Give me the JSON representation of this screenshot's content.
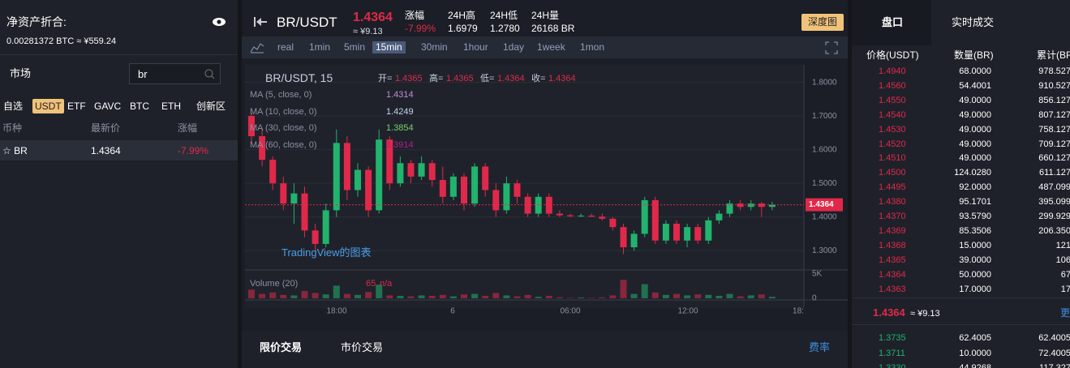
{
  "left": {
    "asset_title": "净资产折合:",
    "asset_value": "0.00281372 BTC ≈ ¥559.24",
    "market_label": "市场",
    "search": "br",
    "tabs": [
      "自选",
      "USDT",
      "ETF",
      "GAVC",
      "BTC",
      "ETH",
      "创新区"
    ],
    "active_tab": 1,
    "columns": [
      "币种",
      "最新价",
      "涨幅"
    ],
    "rows": [
      [
        "☆ BR",
        "1.4364",
        "-7.99%"
      ]
    ]
  },
  "header": {
    "pair": "BR/USDT",
    "price": "1.4364",
    "price_cny": "≈ ¥9.13",
    "stats": [
      {
        "label": "涨幅",
        "value": "-7.99%"
      },
      {
        "label": "24H高",
        "value": "1.6979"
      },
      {
        "label": "24H低",
        "value": "1.2780"
      },
      {
        "label": "24H量",
        "value": "26168 BR"
      }
    ],
    "depth_button": "深度图"
  },
  "intervals": [
    "real",
    "1min",
    "5min",
    "15min",
    "30min",
    "1hour",
    "1day",
    "1week",
    "1mon"
  ],
  "active_interval": 3,
  "chart_data": {
    "type": "candlestick",
    "legend_title": "BR/USDT, 15",
    "ohlc_legend": [
      {
        "label": "开=",
        "value": "1.4365"
      },
      {
        "label": "高=",
        "value": "1.4365"
      },
      {
        "label": "低=",
        "value": "1.4364"
      },
      {
        "label": "收=",
        "value": "1.4364"
      }
    ],
    "ma": [
      {
        "label": "MA (5, close, 0)",
        "value": "1.4314",
        "color": "#c48ad6"
      },
      {
        "label": "MA (10, close, 0)",
        "value": "1.4249",
        "color": "#c6d4f0"
      },
      {
        "label": "MA (30, close, 0)",
        "value": "1.3854",
        "color": "#7ccf6a"
      },
      {
        "label": "MA (60, close, 0)",
        "value": "1.3914",
        "color": "#b0208c"
      }
    ],
    "watermark": "TradingView的图表",
    "volume_label": "Volume (20)",
    "volume_value": "65",
    "volume_na": "n/a",
    "last_price": 1.4364,
    "last_price_label": "1.4364",
    "up_color": "#22b36e",
    "down_color": "#e0294a",
    "ylim": [
      1.25,
      1.84
    ],
    "yticks": [
      {
        "value": 1.3,
        "label": "1.3000"
      },
      {
        "value": 1.4,
        "label": "1.4000"
      },
      {
        "value": 1.5,
        "label": "1.5000"
      },
      {
        "value": 1.6,
        "label": "1.6000"
      },
      {
        "value": 1.7,
        "label": "1.7000"
      },
      {
        "value": 1.8,
        "label": "1.8000"
      }
    ],
    "vlim": [
      0,
      5000
    ],
    "vticks": [
      {
        "value": 5000,
        "label": "5K"
      },
      0
    ],
    "xticks": [
      "18:00",
      "6",
      "06:00",
      "12:00",
      "18:"
    ],
    "ohlc": [
      [
        1.7,
        1.71,
        1.62,
        1.64
      ],
      [
        1.64,
        1.66,
        1.55,
        1.57
      ],
      [
        1.57,
        1.58,
        1.48,
        1.5
      ],
      [
        1.5,
        1.52,
        1.42,
        1.44
      ],
      [
        1.44,
        1.5,
        1.38,
        1.47
      ],
      [
        1.47,
        1.49,
        1.34,
        1.36
      ],
      [
        1.36,
        1.38,
        1.3,
        1.32
      ],
      [
        1.32,
        1.44,
        1.31,
        1.42
      ],
      [
        1.42,
        1.66,
        1.4,
        1.62
      ],
      [
        1.62,
        1.64,
        1.45,
        1.48
      ],
      [
        1.48,
        1.56,
        1.46,
        1.54
      ],
      [
        1.54,
        1.55,
        1.4,
        1.42
      ],
      [
        1.42,
        1.66,
        1.41,
        1.63
      ],
      [
        1.63,
        1.64,
        1.48,
        1.5
      ],
      [
        1.5,
        1.58,
        1.49,
        1.56
      ],
      [
        1.56,
        1.57,
        1.5,
        1.52
      ],
      [
        1.52,
        1.58,
        1.51,
        1.56
      ],
      [
        1.56,
        1.57,
        1.49,
        1.51
      ],
      [
        1.51,
        1.55,
        1.44,
        1.46
      ],
      [
        1.46,
        1.53,
        1.45,
        1.52
      ],
      [
        1.52,
        1.53,
        1.42,
        1.44
      ],
      [
        1.44,
        1.56,
        1.43,
        1.55
      ],
      [
        1.55,
        1.56,
        1.46,
        1.48
      ],
      [
        1.48,
        1.5,
        1.4,
        1.42
      ],
      [
        1.42,
        1.52,
        1.41,
        1.5
      ],
      [
        1.5,
        1.51,
        1.44,
        1.46
      ],
      [
        1.46,
        1.47,
        1.4,
        1.41
      ],
      [
        1.41,
        1.47,
        1.4,
        1.46
      ],
      [
        1.46,
        1.47,
        1.4,
        1.41
      ],
      [
        1.41,
        1.42,
        1.4,
        1.405
      ],
      [
        1.405,
        1.41,
        1.4,
        1.402
      ],
      [
        1.402,
        1.41,
        1.4,
        1.404
      ],
      [
        1.404,
        1.41,
        1.4,
        1.401
      ],
      [
        1.401,
        1.41,
        1.39,
        1.395
      ],
      [
        1.395,
        1.4,
        1.36,
        1.37
      ],
      [
        1.37,
        1.38,
        1.29,
        1.31
      ],
      [
        1.31,
        1.36,
        1.3,
        1.35
      ],
      [
        1.35,
        1.46,
        1.34,
        1.45
      ],
      [
        1.45,
        1.46,
        1.32,
        1.33
      ],
      [
        1.33,
        1.39,
        1.32,
        1.38
      ],
      [
        1.38,
        1.39,
        1.32,
        1.33
      ],
      [
        1.33,
        1.38,
        1.31,
        1.37
      ],
      [
        1.37,
        1.38,
        1.32,
        1.33
      ],
      [
        1.33,
        1.4,
        1.32,
        1.39
      ],
      [
        1.39,
        1.42,
        1.38,
        1.41
      ],
      [
        1.41,
        1.45,
        1.4,
        1.44
      ],
      [
        1.44,
        1.45,
        1.42,
        1.43
      ],
      [
        1.43,
        1.45,
        1.42,
        1.44
      ],
      [
        1.44,
        1.445,
        1.4,
        1.43
      ],
      [
        1.43,
        1.445,
        1.42,
        1.4364
      ]
    ],
    "volumes": [
      1800,
      900,
      1200,
      700,
      600,
      1500,
      1100,
      800,
      2600,
      900,
      700,
      1300,
      2800,
      600,
      500,
      400,
      600,
      500,
      700,
      400,
      800,
      900,
      500,
      1100,
      600,
      400,
      700,
      300,
      500,
      200,
      100,
      150,
      100,
      200,
      600,
      3800,
      900,
      2900,
      1200,
      700,
      900,
      600,
      800,
      700,
      500,
      900,
      400,
      600,
      800,
      300
    ]
  },
  "orderbook": {
    "tabs": [
      "盘口",
      "实时成交"
    ],
    "columns": [
      "价格(USDT)",
      "数量(BR)",
      "累计(BR)"
    ],
    "asks": [
      [
        "1.4940",
        "68.0000",
        "978.527"
      ],
      [
        "1.4560",
        "54.4001",
        "910.527"
      ],
      [
        "1.4550",
        "49.0000",
        "856.127"
      ],
      [
        "1.4540",
        "49.0000",
        "807.127"
      ],
      [
        "1.4530",
        "49.0000",
        "758.127"
      ],
      [
        "1.4520",
        "49.0000",
        "709.127"
      ],
      [
        "1.4510",
        "49.0000",
        "660.127"
      ],
      [
        "1.4500",
        "124.0280",
        "611.127"
      ],
      [
        "1.4495",
        "92.0000",
        "487.099"
      ],
      [
        "1.4380",
        "95.1701",
        "395.099"
      ],
      [
        "1.4370",
        "93.5790",
        "299.929"
      ],
      [
        "1.4369",
        "85.3506",
        "206.350"
      ],
      [
        "1.4368",
        "15.0000",
        "121"
      ],
      [
        "1.4365",
        "39.0000",
        "106"
      ],
      [
        "1.4364",
        "50.0000",
        "67"
      ],
      [
        "1.4363",
        "17.0000",
        "17"
      ]
    ],
    "mid_price": "1.4364",
    "mid_cny": "≈ ¥9.13",
    "more": "更",
    "bids": [
      [
        "1.3735",
        "62.4005",
        "62.4005"
      ],
      [
        "1.3711",
        "10.0000",
        "72.4005"
      ],
      [
        "1.3330",
        "44.9268",
        "117.327"
      ]
    ]
  },
  "trade_tabs": [
    "限价交易",
    "市价交易"
  ],
  "fee": "费率"
}
